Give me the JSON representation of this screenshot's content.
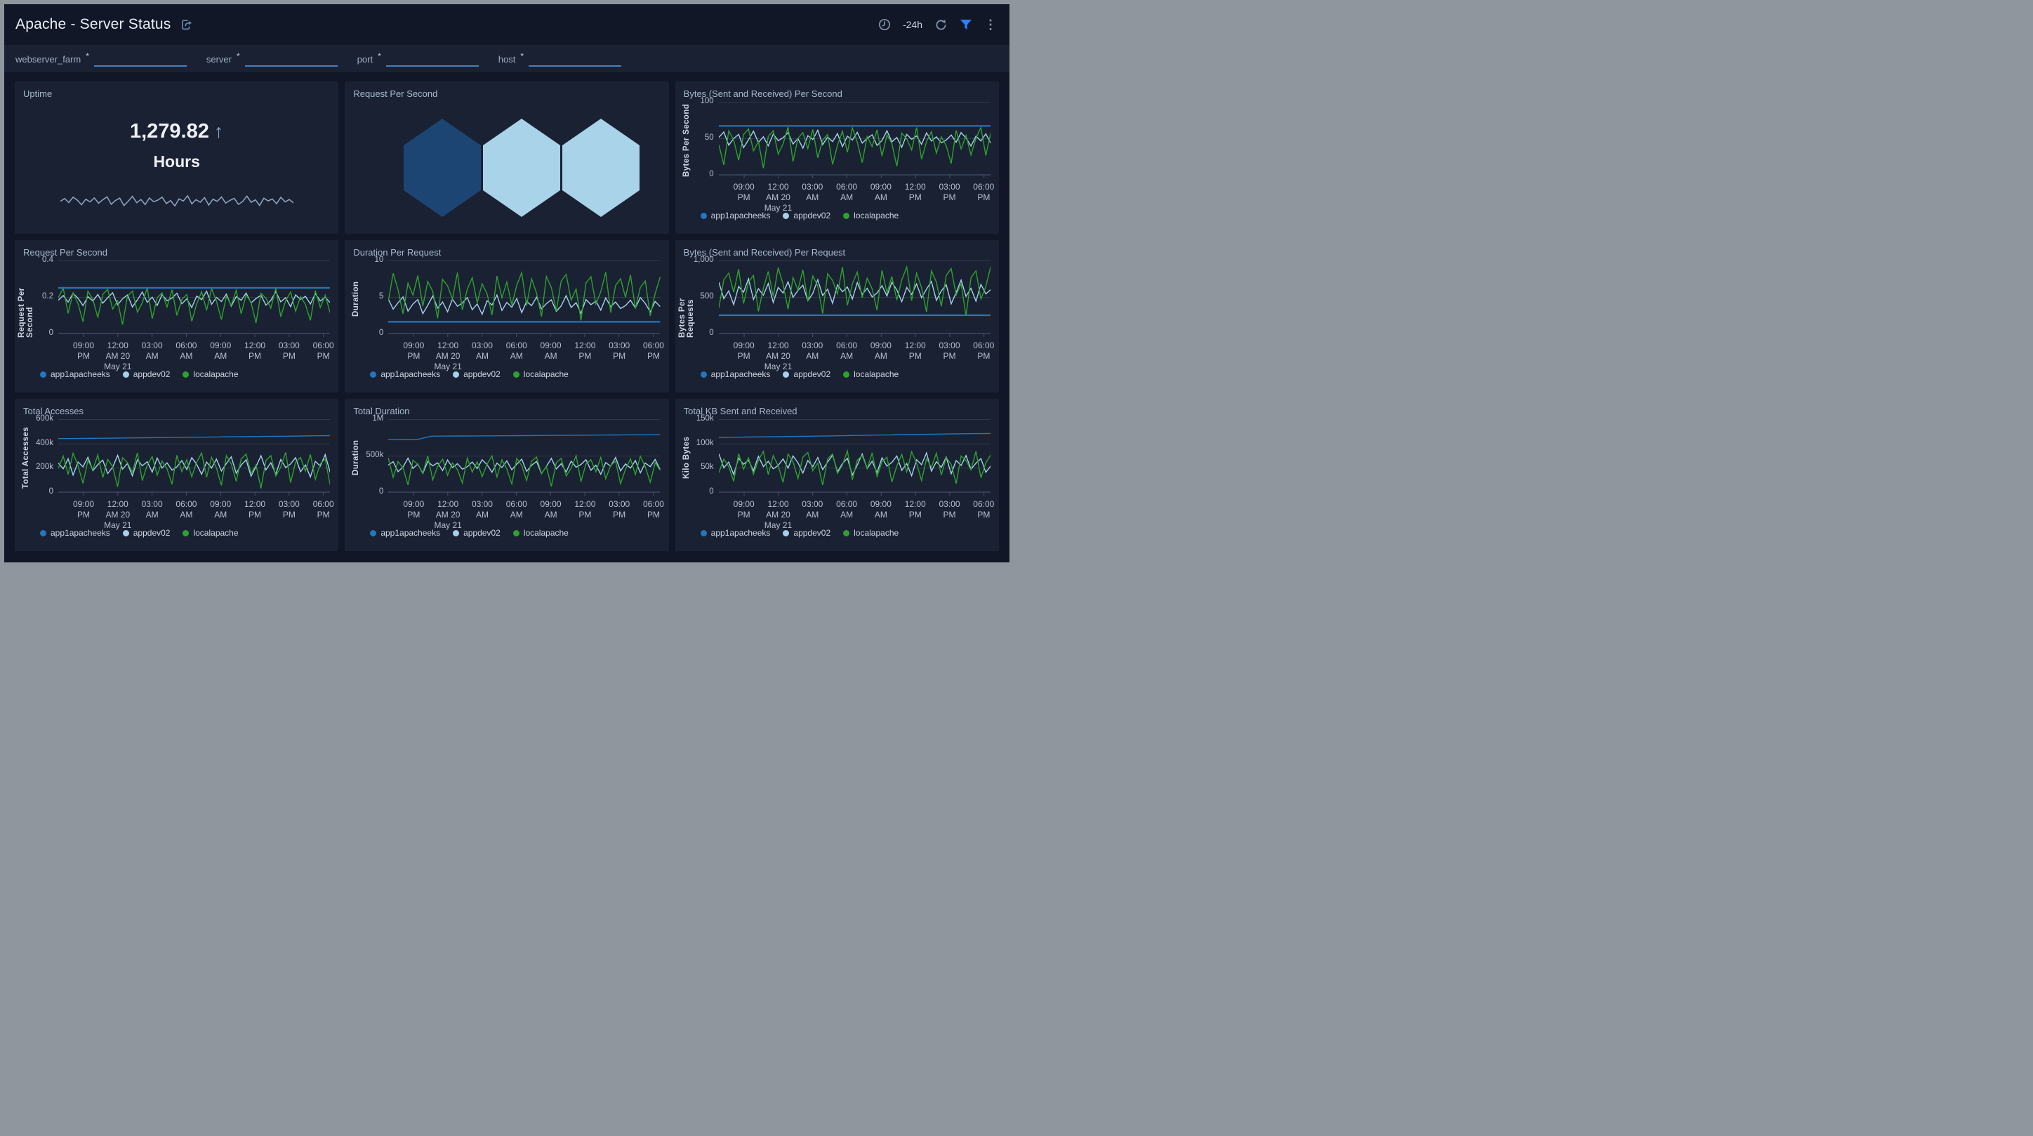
{
  "header": {
    "title": "Apache - Server Status",
    "time_range": "-24h"
  },
  "filters": [
    {
      "label": "webserver_farm",
      "required": "*",
      "value": "",
      "placeholder": ""
    },
    {
      "label": "server",
      "required": "*",
      "value": "",
      "placeholder": ""
    },
    {
      "label": "port",
      "required": "*",
      "value": "",
      "placeholder": ""
    },
    {
      "label": "host",
      "required": "*",
      "value": "",
      "placeholder": ""
    }
  ],
  "colors": {
    "frame": "#8f969e",
    "page_bg": "#121727",
    "filter_bar_bg": "#1a2133",
    "panel_bg": "#1a2132",
    "blue": "#1f78c1",
    "lightblue": "#a6d1ec",
    "green": "#2da22d",
    "funnel_blue": "#2e7ff2",
    "filter_underline": "#4a7cbd",
    "sparkline": "#91a8c6",
    "hex_dark": "#1d4573",
    "hex_light": "#a9d3e9",
    "stat_accent": "#8aa4c8"
  },
  "noise_patterns": {
    "p1": [
      0.55,
      0.72,
      0.48,
      0.8,
      0.62,
      0.35,
      0.68,
      0.52,
      0.76,
      0.44,
      0.64,
      0.82,
      0.38,
      0.6,
      0.74,
      0.3,
      0.56,
      0.85,
      0.47,
      0.66,
      0.36,
      0.75,
      0.53,
      0.63,
      0.8,
      0.42,
      0.6,
      0.28,
      0.7,
      0.57,
      0.88,
      0.4,
      0.65,
      0.5,
      0.77,
      0.33,
      0.68,
      0.55,
      0.81,
      0.45,
      0.61,
      0.73,
      0.37,
      0.54,
      0.86,
      0.49,
      0.64,
      0.31,
      0.74,
      0.58,
      0.69,
      0.41,
      0.79,
      0.52,
      0.66,
      0.46
    ],
    "p2": [
      0.72,
      0.95,
      0.35,
      0.84,
      0.58,
      0.15,
      0.88,
      0.68,
      0.25,
      0.8,
      0.92,
      0.45,
      0.65,
      0.08,
      0.76,
      0.88,
      0.38,
      0.6,
      0.96,
      0.22,
      0.72,
      0.84,
      0.5,
      0.91,
      0.3,
      0.68,
      0.8,
      0.16,
      0.57,
      0.87,
      0.42,
      0.94,
      0.64,
      0.2,
      0.76,
      0.54,
      0.9,
      0.34,
      0.79,
      0.61,
      0.12,
      0.83,
      0.71,
      0.47,
      0.95,
      0.27,
      0.65,
      0.86,
      0.4,
      0.75,
      0.56,
      0.18,
      0.89,
      0.49,
      0.78,
      0.36
    ]
  },
  "xticks_shared": [
    [
      "09:00",
      "PM"
    ],
    [
      "12:00",
      "AM 20",
      "May 21"
    ],
    [
      "03:00",
      "AM"
    ],
    [
      "06:00",
      "AM"
    ],
    [
      "09:00",
      "AM"
    ],
    [
      "12:00",
      "PM"
    ],
    [
      "03:00",
      "PM"
    ],
    [
      "06:00",
      "PM"
    ]
  ],
  "chart_data": [
    {
      "type": "stat",
      "title": "Uptime",
      "value": "1,279.82",
      "trend": "up",
      "unit": "Hours",
      "sparkline": {
        "pattern": "p1",
        "range": [
          1268,
          1284
        ]
      }
    },
    {
      "type": "honeycomb",
      "title": "Request Per Second",
      "cells": [
        {
          "color": "#1d4573"
        },
        {
          "color": "#a9d3e9"
        },
        {
          "color": "#a9d3e9"
        }
      ]
    },
    {
      "type": "line",
      "title": "Bytes (Sent and Received) Per Second",
      "ylabel": "Bytes Per Second",
      "ylim": [
        0,
        100
      ],
      "yticks": [
        "0",
        "50",
        "100"
      ],
      "series": [
        {
          "name": "app1apacheeks",
          "color_key": "blue",
          "kind": "flat",
          "value": 67
        },
        {
          "name": "appdev02",
          "color_key": "lightblue",
          "kind": "noise",
          "pattern": "p1",
          "rotate": 10,
          "range": [
            25,
            66
          ]
        },
        {
          "name": "localapache",
          "color_key": "green",
          "kind": "noise",
          "pattern": "p2",
          "rotate": 4,
          "range": [
            4,
            68
          ]
        }
      ]
    },
    {
      "type": "line",
      "title": "Request Per Second",
      "ylabel": "Request Per Second",
      "ylim": [
        0,
        0.4
      ],
      "yticks": [
        "0",
        "0.2",
        "0.4"
      ],
      "series": [
        {
          "name": "app1apacheeks",
          "color_key": "blue",
          "kind": "flat",
          "value": 0.25
        },
        {
          "name": "appdev02",
          "color_key": "lightblue",
          "kind": "noise",
          "pattern": "p1",
          "rotate": 0,
          "range": [
            0.1,
            0.25
          ]
        },
        {
          "name": "localapache",
          "color_key": "green",
          "kind": "noise",
          "pattern": "p2",
          "rotate": 0,
          "range": [
            0.03,
            0.26
          ]
        }
      ]
    },
    {
      "type": "line",
      "title": "Duration Per Request",
      "ylabel": "Duration",
      "ylim": [
        0,
        10
      ],
      "yticks": [
        "0",
        "5",
        "10"
      ],
      "series": [
        {
          "name": "app1apacheeks",
          "color_key": "blue",
          "kind": "flat",
          "value": 1.6
        },
        {
          "name": "appdev02",
          "color_key": "lightblue",
          "kind": "noise",
          "pattern": "p1",
          "rotate": 8,
          "range": [
            1.4,
            5.8
          ]
        },
        {
          "name": "localapache",
          "color_key": "green",
          "kind": "noise",
          "pattern": "p2",
          "rotate": 30,
          "range": [
            1.2,
            8.7
          ]
        }
      ]
    },
    {
      "type": "line",
      "title": "Bytes (Sent and Received) Per Request",
      "ylabel": "Bytes Per Requests",
      "ylim": [
        0,
        1000
      ],
      "yticks": [
        "0",
        "500",
        "1,000"
      ],
      "series": [
        {
          "name": "app1apacheeks",
          "color_key": "blue",
          "kind": "flat",
          "value": 250
        },
        {
          "name": "appdev02",
          "color_key": "lightblue",
          "kind": "noise",
          "pattern": "p1",
          "rotate": 24,
          "range": [
            230,
            820
          ]
        },
        {
          "name": "localapache",
          "color_key": "green",
          "kind": "noise",
          "pattern": "p2",
          "rotate": 19,
          "range": [
            180,
            950
          ]
        }
      ]
    },
    {
      "type": "line",
      "title": "Total Accesses",
      "ylabel": "Total Accesses",
      "ylim": [
        0,
        600000
      ],
      "yticks": [
        "0",
        "200k",
        "400k",
        "600k"
      ],
      "series": [
        {
          "name": "app1apacheeks",
          "color_key": "blue",
          "kind": "points",
          "values": [
            440000,
            441000,
            442000,
            443000,
            444500,
            446000,
            447000,
            448000,
            449500,
            451000,
            452000,
            453500,
            455000,
            456000,
            457500,
            459000,
            460000,
            461500,
            463000,
            464500
          ]
        },
        {
          "name": "appdev02",
          "color_key": "lightblue",
          "kind": "noise",
          "pattern": "p1",
          "rotate": 32,
          "range": [
            40000,
            345000
          ]
        },
        {
          "name": "localapache",
          "color_key": "green",
          "kind": "noise",
          "pattern": "p2",
          "rotate": 28,
          "range": [
            5000,
            340000
          ]
        }
      ]
    },
    {
      "type": "line",
      "title": "Total Duration",
      "ylabel": "Duration",
      "ylim": [
        0,
        1000000
      ],
      "yticks": [
        "0",
        "500k",
        "1M"
      ],
      "series": [
        {
          "name": "app1apacheeks",
          "color_key": "blue",
          "kind": "points",
          "values": [
            718000,
            720000,
            721000,
            766000,
            768000,
            769000,
            770000,
            771000,
            772500,
            774000,
            775000,
            776500,
            778000,
            779500,
            781000,
            782500,
            784000,
            785500,
            787000,
            789000
          ]
        },
        {
          "name": "appdev02",
          "color_key": "lightblue",
          "kind": "noise",
          "pattern": "p1",
          "rotate": 40,
          "range": [
            140000,
            520000
          ]
        },
        {
          "name": "localapache",
          "color_key": "green",
          "kind": "noise",
          "pattern": "p2",
          "rotate": 36,
          "range": [
            40000,
            520000
          ]
        }
      ]
    },
    {
      "type": "line",
      "title": "Total KB Sent and Received",
      "ylabel": "Kilo Bytes",
      "ylim": [
        0,
        150000
      ],
      "yticks": [
        "0",
        "50k",
        "100k",
        "150k"
      ],
      "series": [
        {
          "name": "app1apacheeks",
          "color_key": "blue",
          "kind": "points",
          "values": [
            112500,
            112800,
            113200,
            113600,
            114000,
            114400,
            114800,
            115200,
            115700,
            116200,
            116700,
            117200,
            117700,
            118200,
            118700,
            119200,
            119600,
            120000,
            120300,
            120600
          ]
        },
        {
          "name": "appdev02",
          "color_key": "lightblue",
          "kind": "noise",
          "pattern": "p1",
          "rotate": 44,
          "range": [
            12000,
            90000
          ]
        },
        {
          "name": "localapache",
          "color_key": "green",
          "kind": "noise",
          "pattern": "p2",
          "rotate": 48,
          "range": [
            8000,
            88000
          ]
        }
      ]
    }
  ]
}
